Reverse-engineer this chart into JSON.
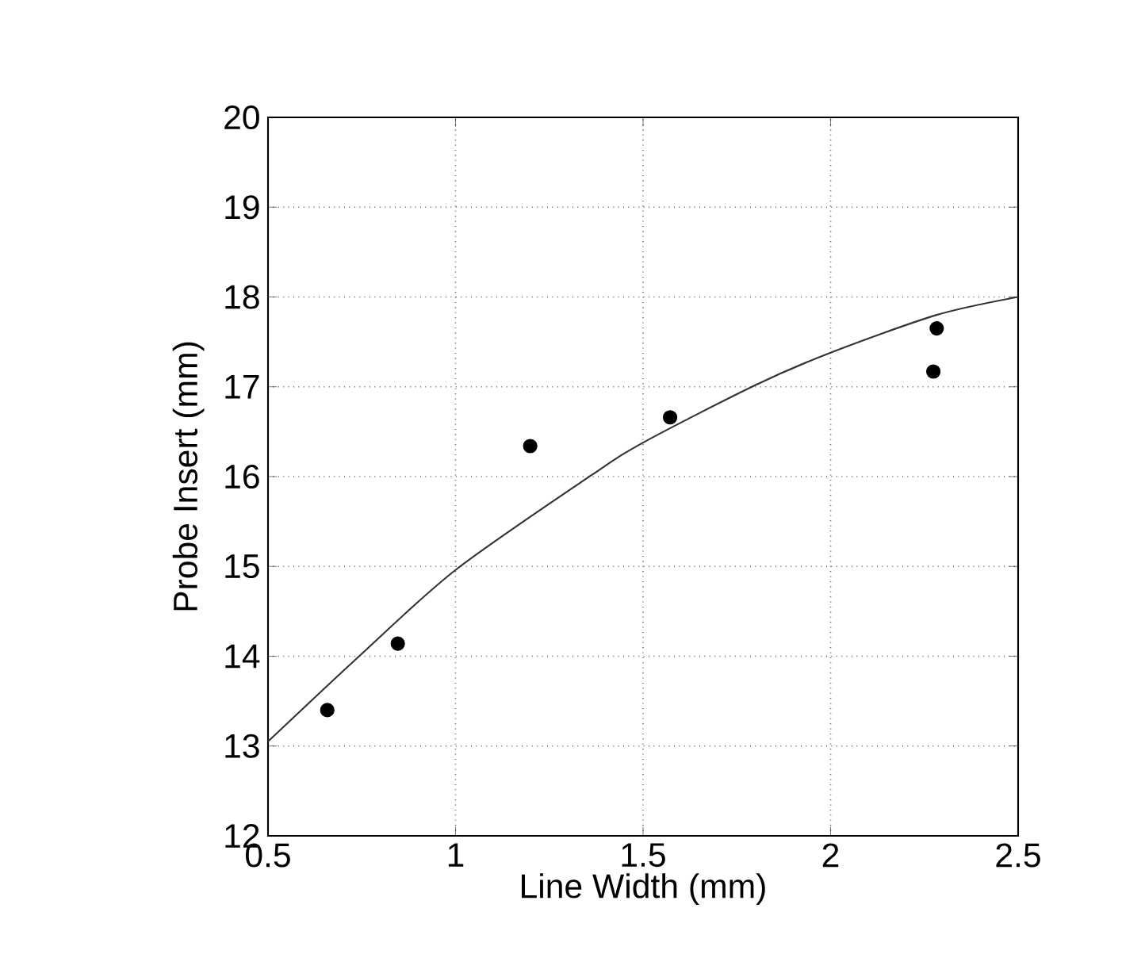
{
  "chart_data": {
    "type": "scatter",
    "xlabel": "Line Width (mm)",
    "ylabel": "Probe Insert (mm)",
    "xlim": [
      0.5,
      2.5
    ],
    "ylim": [
      12,
      20
    ],
    "xticks": [
      0.5,
      1,
      1.5,
      2,
      2.5
    ],
    "yticks": [
      12,
      13,
      14,
      15,
      16,
      17,
      18,
      19,
      20
    ],
    "grid": true,
    "marker": "circle",
    "series": [
      {
        "color": "#000000",
        "x": [
          0.658,
          0.846,
          1.199,
          1.572,
          2.283,
          2.274
        ],
        "values": [
          13.4,
          14.14,
          16.34,
          16.66,
          17.65,
          17.17
        ]
      },
      {
        "type": "line",
        "color": "#333333",
        "marker": "none",
        "line_style": "solid",
        "x": [
          0.5,
          0.743,
          1.0,
          1.364,
          1.505,
          1.8,
          2.0,
          2.283,
          2.5
        ],
        "values": [
          13.05,
          14.0,
          14.96,
          16.02,
          16.39,
          17.02,
          17.38,
          17.8,
          18.0
        ]
      }
    ]
  }
}
